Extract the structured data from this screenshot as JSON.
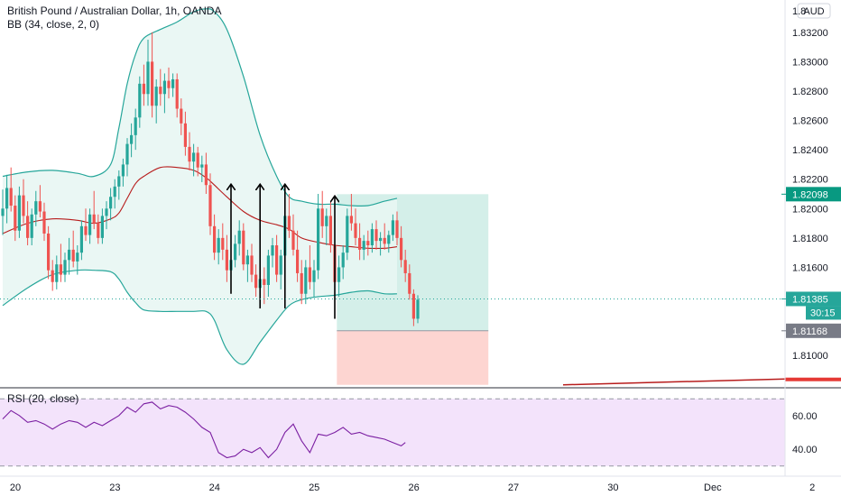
{
  "header": {
    "symbol_line": "British Pound / Australian Dollar, 1h, OANDA",
    "indicator_line": "BB (34, close, 2, 0)",
    "currency_button": "AUD"
  },
  "rsi_panel": {
    "label": "RSI (20, close)",
    "ticks": [
      {
        "value": 60,
        "label": "60.00"
      },
      {
        "value": 40,
        "label": "40.00"
      }
    ],
    "band_upper": 70,
    "band_lower": 30
  },
  "price_axis": {
    "ticks": [
      {
        "value": 1.832,
        "label": "1.83200"
      },
      {
        "value": 1.83,
        "label": "1.83000"
      },
      {
        "value": 1.828,
        "label": "1.82800"
      },
      {
        "value": 1.826,
        "label": "1.82600"
      },
      {
        "value": 1.824,
        "label": "1.82400"
      },
      {
        "value": 1.822,
        "label": "1.82200"
      },
      {
        "value": 1.82,
        "label": "1.82000"
      },
      {
        "value": 1.818,
        "label": "1.81800"
      },
      {
        "value": 1.816,
        "label": "1.81600"
      },
      {
        "value": 1.81,
        "label": "1.81000"
      }
    ],
    "top_partial_label": "1.8",
    "tags": [
      {
        "value": 1.82098,
        "label": "1.82098",
        "color": "#089981"
      },
      {
        "value": 1.81385,
        "label": "1.81385",
        "color": "#26a69a"
      },
      {
        "value": 1.81168,
        "label": "1.81168",
        "color": "#787b86"
      }
    ],
    "countdown": "30:15"
  },
  "time_axis": {
    "ticks": [
      {
        "bar": 0,
        "label": "20"
      },
      {
        "bar": 24,
        "label": "23"
      },
      {
        "bar": 48,
        "label": "24"
      },
      {
        "bar": 72,
        "label": "25"
      },
      {
        "bar": 96,
        "label": "26"
      },
      {
        "bar": 120,
        "label": "27"
      },
      {
        "bar": 144,
        "label": "30"
      },
      {
        "bar": 168,
        "label": "Dec"
      },
      {
        "bar": 192,
        "label": "2"
      }
    ]
  },
  "colors": {
    "up": "#26a69a",
    "down": "#ef5350",
    "bb_band": "#26a69a",
    "bb_basis": "#b71c1c",
    "bb_fill": "#e8f6f3",
    "rsi_line": "#7b1fa2",
    "rsi_fill": "#f3e3fb",
    "target_zone": "#d4efe9",
    "stop_zone": "#fdd5d1",
    "arrow": "#000000"
  },
  "chart_data": {
    "type": "candlestick",
    "symbol": "British Pound / Australian Dollar",
    "timeframe": "1h",
    "source": "OANDA",
    "ylim": [
      1.8078,
      1.8342
    ],
    "candles": [
      [
        1.8195,
        1.8213,
        1.8182,
        1.82
      ],
      [
        1.82,
        1.8223,
        1.819,
        1.8214
      ],
      [
        1.8214,
        1.8228,
        1.8198,
        1.8202
      ],
      [
        1.8202,
        1.8209,
        1.8178,
        1.8185
      ],
      [
        1.8185,
        1.8215,
        1.818,
        1.8209
      ],
      [
        1.8209,
        1.822,
        1.819,
        1.8195
      ],
      [
        1.8195,
        1.8205,
        1.8175,
        1.818
      ],
      [
        1.818,
        1.82,
        1.8175,
        1.8196
      ],
      [
        1.8196,
        1.8212,
        1.8188,
        1.8205
      ],
      [
        1.8205,
        1.8216,
        1.8194,
        1.8198
      ],
      [
        1.8198,
        1.8204,
        1.8178,
        1.8183
      ],
      [
        1.8183,
        1.8188,
        1.8152,
        1.8158
      ],
      [
        1.8158,
        1.8165,
        1.8144,
        1.815
      ],
      [
        1.815,
        1.8168,
        1.8145,
        1.8162
      ],
      [
        1.8162,
        1.8176,
        1.815,
        1.8155
      ],
      [
        1.8155,
        1.817,
        1.815,
        1.8165
      ],
      [
        1.8165,
        1.818,
        1.8155,
        1.8172
      ],
      [
        1.8172,
        1.8185,
        1.816,
        1.8164
      ],
      [
        1.8164,
        1.8175,
        1.8155,
        1.817
      ],
      [
        1.817,
        1.8192,
        1.8165,
        1.8188
      ],
      [
        1.8188,
        1.82,
        1.8178,
        1.8182
      ],
      [
        1.8182,
        1.82,
        1.8176,
        1.8196
      ],
      [
        1.8196,
        1.8212,
        1.8186,
        1.819
      ],
      [
        1.819,
        1.8196,
        1.8176,
        1.818
      ],
      [
        1.818,
        1.82,
        1.8176,
        1.8195
      ],
      [
        1.8195,
        1.8205,
        1.8186,
        1.82
      ],
      [
        1.82,
        1.8214,
        1.8192,
        1.8208
      ],
      [
        1.8208,
        1.822,
        1.82,
        1.8215
      ],
      [
        1.8215,
        1.8226,
        1.8206,
        1.8222
      ],
      [
        1.8222,
        1.8234,
        1.8215,
        1.823
      ],
      [
        1.823,
        1.8248,
        1.8222,
        1.8244
      ],
      [
        1.8244,
        1.8258,
        1.8235,
        1.825
      ],
      [
        1.825,
        1.8268,
        1.824,
        1.8262
      ],
      [
        1.8262,
        1.829,
        1.8255,
        1.8285
      ],
      [
        1.8285,
        1.8298,
        1.827,
        1.8278
      ],
      [
        1.8278,
        1.8315,
        1.827,
        1.83
      ],
      [
        1.83,
        1.832,
        1.8262,
        1.827
      ],
      [
        1.827,
        1.8288,
        1.8258,
        1.8283
      ],
      [
        1.8283,
        1.8295,
        1.827,
        1.8278
      ],
      [
        1.8278,
        1.8292,
        1.8265,
        1.8287
      ],
      [
        1.8287,
        1.8296,
        1.8275,
        1.8282
      ],
      [
        1.8282,
        1.8292,
        1.8276,
        1.8288
      ],
      [
        1.8288,
        1.8292,
        1.8262,
        1.8268
      ],
      [
        1.8268,
        1.8275,
        1.825,
        1.8258
      ],
      [
        1.8258,
        1.8266,
        1.8236,
        1.8242
      ],
      [
        1.8242,
        1.8252,
        1.8226,
        1.8232
      ],
      [
        1.8232,
        1.8244,
        1.8222,
        1.8238
      ],
      [
        1.8238,
        1.8242,
        1.8222,
        1.8228
      ],
      [
        1.8228,
        1.8236,
        1.8218,
        1.823
      ],
      [
        1.823,
        1.8238,
        1.821,
        1.8216
      ],
      [
        1.8216,
        1.8224,
        1.8182,
        1.8188
      ],
      [
        1.8188,
        1.8196,
        1.8165,
        1.817
      ],
      [
        1.817,
        1.8186,
        1.8162,
        1.818
      ],
      [
        1.818,
        1.819,
        1.8165,
        1.8172
      ],
      [
        1.8172,
        1.8182,
        1.815,
        1.8158
      ],
      [
        1.8158,
        1.817,
        1.8145,
        1.8165
      ],
      [
        1.8165,
        1.8182,
        1.816,
        1.8176
      ],
      [
        1.8176,
        1.8192,
        1.8168,
        1.8185
      ],
      [
        1.8185,
        1.819,
        1.8158,
        1.8162
      ],
      [
        1.8162,
        1.8172,
        1.815,
        1.8168
      ],
      [
        1.8168,
        1.8176,
        1.815,
        1.8155
      ],
      [
        1.8155,
        1.8162,
        1.814,
        1.8146
      ],
      [
        1.8146,
        1.8158,
        1.8138,
        1.8152
      ],
      [
        1.8152,
        1.816,
        1.8135,
        1.8148
      ],
      [
        1.8148,
        1.8172,
        1.814,
        1.8168
      ],
      [
        1.8168,
        1.818,
        1.816,
        1.8175
      ],
      [
        1.8175,
        1.8182,
        1.815,
        1.8155
      ],
      [
        1.8155,
        1.8172,
        1.8145,
        1.8168
      ],
      [
        1.8168,
        1.82,
        1.8162,
        1.8195
      ],
      [
        1.8195,
        1.821,
        1.818,
        1.8185
      ],
      [
        1.8185,
        1.8196,
        1.8168,
        1.8172
      ],
      [
        1.8172,
        1.8185,
        1.815,
        1.8156
      ],
      [
        1.8156,
        1.8165,
        1.8135,
        1.8142
      ],
      [
        1.8142,
        1.8165,
        1.8135,
        1.816
      ],
      [
        1.816,
        1.8175,
        1.8145,
        1.815
      ],
      [
        1.815,
        1.8165,
        1.814,
        1.8158
      ],
      [
        1.8158,
        1.821,
        1.8152,
        1.82
      ],
      [
        1.82,
        1.8212,
        1.818,
        1.8188
      ],
      [
        1.8188,
        1.82,
        1.8175,
        1.8195
      ],
      [
        1.8195,
        1.8205,
        1.817,
        1.8175
      ],
      [
        1.8175,
        1.8185,
        1.8145,
        1.815
      ],
      [
        1.815,
        1.8168,
        1.814,
        1.816
      ],
      [
        1.816,
        1.8175,
        1.8152,
        1.817
      ],
      [
        1.817,
        1.82,
        1.8165,
        1.8195
      ],
      [
        1.8195,
        1.821,
        1.8185,
        1.819
      ],
      [
        1.819,
        1.82,
        1.8175,
        1.818
      ],
      [
        1.818,
        1.819,
        1.8165,
        1.8172
      ],
      [
        1.8172,
        1.8182,
        1.8165,
        1.8178
      ],
      [
        1.8178,
        1.8185,
        1.8168,
        1.8175
      ],
      [
        1.8175,
        1.819,
        1.817,
        1.8186
      ],
      [
        1.8186,
        1.8192,
        1.8172,
        1.8178
      ],
      [
        1.8178,
        1.8184,
        1.8168,
        1.818
      ],
      [
        1.818,
        1.819,
        1.8172,
        1.8176
      ],
      [
        1.8176,
        1.8185,
        1.817,
        1.8182
      ],
      [
        1.8182,
        1.8196,
        1.8178,
        1.8192
      ],
      [
        1.8192,
        1.8198,
        1.8175,
        1.818
      ],
      [
        1.818,
        1.8188,
        1.816,
        1.8165
      ],
      [
        1.8165,
        1.8172,
        1.815,
        1.8156
      ],
      [
        1.8156,
        1.8162,
        1.8138,
        1.8142
      ],
      [
        1.8142,
        1.8145,
        1.812,
        1.8125
      ],
      [
        1.8125,
        1.8141,
        1.8122,
        1.8138
      ]
    ],
    "bollinger": {
      "length": 34,
      "mult": 2,
      "upper": [
        [
          0,
          1.8222
        ],
        [
          6,
          1.8225
        ],
        [
          12,
          1.8226
        ],
        [
          18,
          1.8224
        ],
        [
          22,
          1.8222
        ],
        [
          26,
          1.823
        ],
        [
          28,
          1.8255
        ],
        [
          30,
          1.8285
        ],
        [
          32,
          1.8305
        ],
        [
          34,
          1.8316
        ],
        [
          38,
          1.8322
        ],
        [
          42,
          1.8327
        ],
        [
          46,
          1.8334
        ],
        [
          49,
          1.8336
        ],
        [
          51,
          1.8334
        ],
        [
          54,
          1.8322
        ],
        [
          58,
          1.829
        ],
        [
          62,
          1.825
        ],
        [
          66,
          1.8222
        ],
        [
          69,
          1.8208
        ],
        [
          72,
          1.8205
        ],
        [
          76,
          1.8203
        ],
        [
          80,
          1.8203
        ],
        [
          84,
          1.8202
        ],
        [
          88,
          1.8202
        ],
        [
          92,
          1.8205
        ],
        [
          95,
          1.8207
        ]
      ],
      "basis": [
        [
          0,
          1.8183
        ],
        [
          6,
          1.819
        ],
        [
          12,
          1.8193
        ],
        [
          18,
          1.8192
        ],
        [
          22,
          1.819
        ],
        [
          26,
          1.8193
        ],
        [
          28,
          1.8197
        ],
        [
          30,
          1.8207
        ],
        [
          32,
          1.8217
        ],
        [
          34,
          1.8222
        ],
        [
          38,
          1.8228
        ],
        [
          42,
          1.8228
        ],
        [
          46,
          1.8226
        ],
        [
          49,
          1.8221
        ],
        [
          51,
          1.8216
        ],
        [
          54,
          1.8208
        ],
        [
          58,
          1.8198
        ],
        [
          62,
          1.8192
        ],
        [
          66,
          1.8189
        ],
        [
          69,
          1.8186
        ],
        [
          72,
          1.818
        ],
        [
          76,
          1.8177
        ],
        [
          80,
          1.8175
        ],
        [
          84,
          1.8174
        ],
        [
          88,
          1.8173
        ],
        [
          92,
          1.8173
        ],
        [
          95,
          1.8174
        ]
      ],
      "lower": [
        [
          0,
          1.8134
        ],
        [
          6,
          1.8146
        ],
        [
          12,
          1.8155
        ],
        [
          18,
          1.8158
        ],
        [
          22,
          1.8158
        ],
        [
          26,
          1.8157
        ],
        [
          28,
          1.8152
        ],
        [
          30,
          1.8143
        ],
        [
          32,
          1.8136
        ],
        [
          34,
          1.8131
        ],
        [
          38,
          1.813
        ],
        [
          42,
          1.813
        ],
        [
          46,
          1.813
        ],
        [
          49,
          1.813
        ],
        [
          51,
          1.8124
        ],
        [
          54,
          1.8104
        ],
        [
          58,
          1.8094
        ],
        [
          62,
          1.8109
        ],
        [
          66,
          1.8124
        ],
        [
          69,
          1.8134
        ],
        [
          72,
          1.8138
        ],
        [
          76,
          1.814
        ],
        [
          80,
          1.8141
        ],
        [
          84,
          1.8143
        ],
        [
          88,
          1.8144
        ],
        [
          92,
          1.8142
        ],
        [
          95,
          1.8142
        ]
      ]
    },
    "arrows": [
      {
        "bar": 55,
        "from": 1.8142,
        "to": 1.8216
      },
      {
        "bar": 62,
        "from": 1.8132,
        "to": 1.8216
      },
      {
        "bar": 68,
        "from": 1.8132,
        "to": 1.8216
      },
      {
        "bar": 80,
        "from": 1.8125,
        "to": 1.8208
      }
    ],
    "position": {
      "start_bar": 81,
      "end_bar": 117,
      "entry": 1.81168,
      "target": 1.82098,
      "stop_visible_to": 1.808
    },
    "trend_line": {
      "from_bar": 135,
      "from": 1.808,
      "to_bar": 150,
      "to": 1.8084
    },
    "rsi": {
      "values": [
        [
          0,
          58
        ],
        [
          2,
          63
        ],
        [
          4,
          60
        ],
        [
          6,
          56
        ],
        [
          8,
          57
        ],
        [
          10,
          55
        ],
        [
          12,
          52
        ],
        [
          14,
          55
        ],
        [
          16,
          57
        ],
        [
          18,
          56
        ],
        [
          20,
          53
        ],
        [
          22,
          56
        ],
        [
          24,
          54
        ],
        [
          26,
          57
        ],
        [
          28,
          60
        ],
        [
          30,
          65
        ],
        [
          32,
          62
        ],
        [
          34,
          67
        ],
        [
          36,
          68
        ],
        [
          38,
          64
        ],
        [
          40,
          66
        ],
        [
          42,
          65
        ],
        [
          44,
          62
        ],
        [
          46,
          58
        ],
        [
          48,
          53
        ],
        [
          50,
          50
        ],
        [
          52,
          38
        ],
        [
          54,
          35
        ],
        [
          56,
          36
        ],
        [
          58,
          40
        ],
        [
          60,
          38
        ],
        [
          62,
          41
        ],
        [
          64,
          35
        ],
        [
          66,
          40
        ],
        [
          68,
          50
        ],
        [
          70,
          55
        ],
        [
          72,
          45
        ],
        [
          74,
          38
        ],
        [
          76,
          49
        ],
        [
          78,
          48
        ],
        [
          80,
          50
        ],
        [
          82,
          53
        ],
        [
          84,
          49
        ],
        [
          86,
          50
        ],
        [
          88,
          48
        ],
        [
          90,
          47
        ],
        [
          92,
          46
        ],
        [
          94,
          44
        ],
        [
          96,
          42
        ],
        [
          97,
          44
        ]
      ],
      "ylim": [
        24,
        76
      ]
    }
  }
}
